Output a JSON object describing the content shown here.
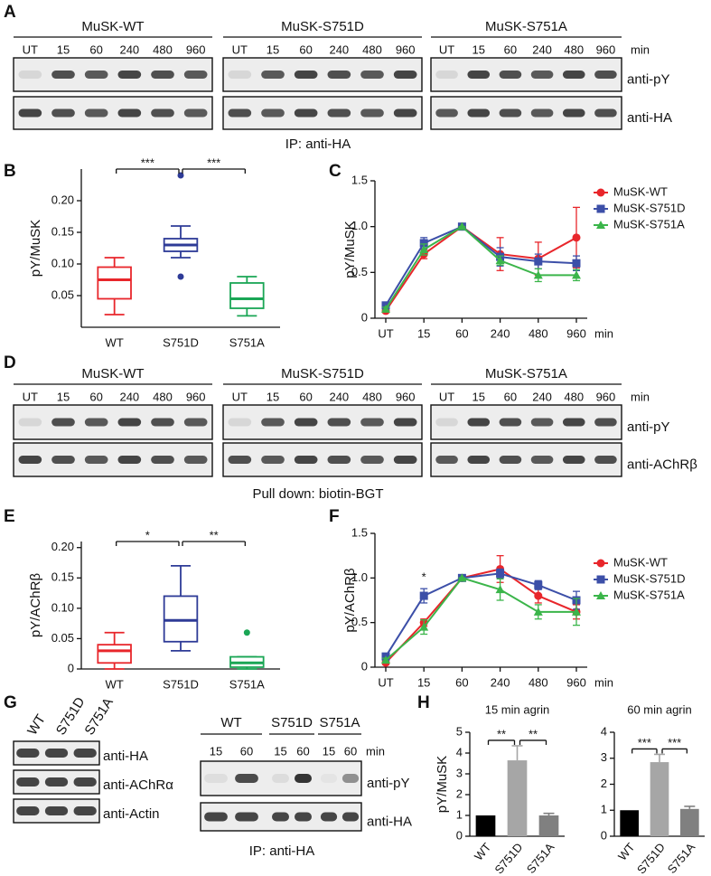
{
  "figure": {
    "panels": [
      "A",
      "B",
      "C",
      "D",
      "E",
      "F",
      "G",
      "H"
    ]
  },
  "blots": {
    "a": {
      "groups": [
        "MuSK-WT",
        "MuSK-S751D",
        "MuSK-S751A"
      ],
      "lanes": [
        "UT",
        "15",
        "60",
        "240",
        "480",
        "960"
      ],
      "unit": "min",
      "rows": [
        "anti-pY",
        "anti-HA"
      ],
      "caption": "IP: anti-HA"
    },
    "d": {
      "groups": [
        "MuSK-WT",
        "MuSK-S751D",
        "MuSK-S751A"
      ],
      "lanes": [
        "UT",
        "15",
        "60",
        "240",
        "480",
        "960"
      ],
      "unit": "min",
      "rows": [
        "anti-pY",
        "anti-AChRβ"
      ],
      "caption": "Pull down: biotin-BGT"
    },
    "g_left": {
      "lanes": [
        "WT",
        "S751D",
        "S751A"
      ],
      "rows": [
        "anti-HA",
        "anti-AChRα",
        "anti-Actin"
      ]
    },
    "g_right": {
      "groups": [
        "WT",
        "S751D",
        "S751A"
      ],
      "lanes": [
        "15",
        "60"
      ],
      "unit": "min",
      "rows": [
        "anti-pY",
        "anti-HA"
      ],
      "caption": "IP: anti-HA"
    }
  },
  "chart_data": [
    {
      "type": "box",
      "y_label": "pY/MuSK",
      "categories": [
        "WT",
        "S751D",
        "S751A"
      ],
      "colors": [
        "#e8262b",
        "#2e3b97",
        "#1aa655"
      ],
      "boxes": [
        {
          "min": 0.02,
          "q1": 0.045,
          "median": 0.075,
          "q3": 0.095,
          "max": 0.11,
          "outliers": []
        },
        {
          "min": 0.11,
          "q1": 0.12,
          "median": 0.13,
          "q3": 0.14,
          "max": 0.16,
          "outliers": [
            0.24,
            0.08
          ]
        },
        {
          "min": 0.018,
          "q1": 0.03,
          "median": 0.045,
          "q3": 0.07,
          "max": 0.08,
          "outliers": []
        }
      ],
      "ylim": [
        0,
        0.25
      ],
      "yticks": [
        0.05,
        {
          "value": 0.1,
          "label": "0.10"
        },
        0.15,
        {
          "value": 0.2,
          "label": "0.20"
        }
      ],
      "annotations": [
        "***",
        "***"
      ]
    },
    {
      "type": "line",
      "y_label": "pY/MuSK",
      "x_label": "min",
      "categories": [
        "UT",
        "15",
        "60",
        "240",
        "480",
        "960"
      ],
      "series": [
        {
          "name": "MuSK-WT",
          "color": "#e8262b",
          "marker": "circle",
          "values": [
            0.08,
            0.7,
            1.0,
            0.7,
            0.65,
            0.88
          ],
          "errors": [
            0.02,
            0.05,
            0,
            0.18,
            0.18,
            0.33
          ]
        },
        {
          "name": "MuSK-S751D",
          "color": "#3c4fa8",
          "marker": "square",
          "values": [
            0.14,
            0.82,
            1.0,
            0.67,
            0.62,
            0.6
          ],
          "errors": [
            0.03,
            0.06,
            0,
            0.1,
            0.08,
            0.08
          ]
        },
        {
          "name": "MuSK-S751A",
          "color": "#3bb54a",
          "marker": "triangle",
          "values": [
            0.1,
            0.75,
            1.0,
            0.63,
            0.47,
            0.47
          ],
          "errors": [
            0.02,
            0.06,
            0,
            0.05,
            0.07,
            0.06
          ]
        }
      ],
      "ylim": [
        0,
        1.5
      ],
      "yticks": [
        0,
        0.5,
        {
          "value": 1,
          "label": "1.0"
        },
        1.5
      ],
      "legend": "right",
      "annotations": []
    },
    {
      "type": "box",
      "y_label": "pY/AChRβ",
      "categories": [
        "WT",
        "S751D",
        "S751A"
      ],
      "colors": [
        "#e8262b",
        "#2e3b97",
        "#1aa655"
      ],
      "boxes": [
        {
          "min": 0.0,
          "q1": 0.01,
          "median": 0.03,
          "q3": 0.04,
          "max": 0.06,
          "outliers": []
        },
        {
          "min": 0.03,
          "q1": 0.045,
          "median": 0.08,
          "q3": 0.12,
          "max": 0.17,
          "outliers": []
        },
        {
          "min": 0.0,
          "q1": 0.003,
          "median": 0.01,
          "q3": 0.02,
          "max": 0.02,
          "outliers": [
            0.06
          ]
        }
      ],
      "ylim": [
        0,
        0.21
      ],
      "yticks": [
        0,
        0.05,
        {
          "value": 0.1,
          "label": "0.10"
        },
        0.15,
        {
          "value": 0.2,
          "label": "0.20"
        }
      ],
      "annotations": [
        "*",
        "**"
      ]
    },
    {
      "type": "line",
      "y_label": "pY/AChRβ",
      "x_label": "min",
      "categories": [
        "UT",
        "15",
        "60",
        "240",
        "480",
        "960"
      ],
      "series": [
        {
          "name": "MuSK-WT",
          "color": "#e8262b",
          "marker": "circle",
          "values": [
            0.05,
            0.5,
            1.0,
            1.1,
            0.8,
            0.62
          ],
          "errors": [
            0.02,
            0.04,
            0,
            0.15,
            0.08,
            0.08
          ]
        },
        {
          "name": "MuSK-S751D",
          "color": "#3c4fa8",
          "marker": "square",
          "values": [
            0.12,
            0.8,
            1.0,
            1.05,
            0.92,
            0.75
          ],
          "errors": [
            0.03,
            0.08,
            0,
            0.05,
            0.05,
            0.1
          ]
        },
        {
          "name": "MuSK-S751A",
          "color": "#3bb54a",
          "marker": "triangle",
          "values": [
            0.08,
            0.45,
            1.0,
            0.87,
            0.62,
            0.62
          ],
          "errors": [
            0.02,
            0.08,
            0,
            0.12,
            0.08,
            0.15
          ]
        }
      ],
      "ylim": [
        0,
        1.5
      ],
      "yticks": [
        0,
        0.5,
        {
          "value": 1,
          "label": "1.0"
        },
        1.5
      ],
      "legend": "right",
      "annotations": [
        "*"
      ]
    },
    {
      "type": "bar",
      "title": "15 min agrin",
      "y_label": "pY/MuSK",
      "categories": [
        "WT",
        "S751D",
        "S751A"
      ],
      "values": [
        1,
        3.65,
        1.0
      ],
      "errors": [
        0,
        0.7,
        0.1
      ],
      "colors": [
        "#000000",
        "#a6a6a6",
        "#808080"
      ],
      "ylim": [
        0,
        5
      ],
      "yticks": [
        0,
        1,
        2,
        3,
        4,
        5
      ],
      "annotations": [
        "**",
        "**"
      ]
    },
    {
      "type": "bar",
      "title": "60 min agrin",
      "categories": [
        "WT",
        "S751D",
        "S751A"
      ],
      "values": [
        1,
        2.85,
        1.05
      ],
      "errors": [
        0,
        0.3,
        0.1
      ],
      "colors": [
        "#000000",
        "#a6a6a6",
        "#808080"
      ],
      "ylim": [
        0,
        4
      ],
      "yticks": [
        0,
        1,
        2,
        3,
        4
      ],
      "annotations": [
        "***",
        "***"
      ]
    }
  ]
}
